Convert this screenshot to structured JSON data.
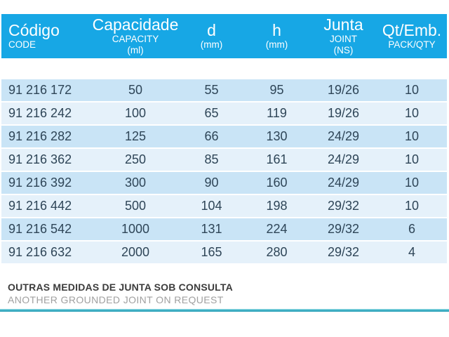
{
  "colors": {
    "header_bg": "#17a7e5",
    "header_text": "#ffffff",
    "row_odd": "#c9e4f6",
    "row_even": "#e5f1fa",
    "row_text": "#2e4557",
    "footer_bold": "#3b3b3b",
    "footer_gray": "#a0a0a0",
    "teal_rule": "#35abc1"
  },
  "table": {
    "columns": [
      {
        "id": "codigo",
        "title": "Código",
        "subtitles": [
          "CODE"
        ]
      },
      {
        "id": "capacidade",
        "title": "Capacidade",
        "subtitles": [
          "CAPACITY",
          "(ml)"
        ]
      },
      {
        "id": "d",
        "title": "d",
        "subtitles": [
          "(mm)"
        ]
      },
      {
        "id": "h",
        "title": "h",
        "subtitles": [
          "(mm)"
        ]
      },
      {
        "id": "junta",
        "title": "Junta",
        "subtitles": [
          "JOINT",
          "(NS)"
        ]
      },
      {
        "id": "qt_emb",
        "title": "Qt/Emb.",
        "subtitles": [
          "PACK/QTY"
        ]
      }
    ],
    "rows": [
      [
        "91 216 172",
        "50",
        "55",
        "95",
        "19/26",
        "10"
      ],
      [
        "91 216 242",
        "100",
        "65",
        "119",
        "19/26",
        "10"
      ],
      [
        "91 216 282",
        "125",
        "66",
        "130",
        "24/29",
        "10"
      ],
      [
        "91 216 362",
        "250",
        "85",
        "161",
        "24/29",
        "10"
      ],
      [
        "91 216 392",
        "300",
        "90",
        "160",
        "24/29",
        "10"
      ],
      [
        "91 216 442",
        "500",
        "104",
        "198",
        "29/32",
        "10"
      ],
      [
        "91 216 542",
        "1000",
        "131",
        "224",
        "29/32",
        "6"
      ],
      [
        "91 216 632",
        "2000",
        "165",
        "280",
        "29/32",
        "4"
      ]
    ]
  },
  "footer": {
    "note_pt": "OUTRAS MEDIDAS DE JUNTA SOB CONSULTA",
    "note_en": "ANOTHER GROUNDED JOINT ON REQUEST"
  },
  "chart_data": {
    "type": "table",
    "columns": [
      "Código / CODE",
      "Capacidade / CAPACITY (ml)",
      "d (mm)",
      "h (mm)",
      "Junta / JOINT (NS)",
      "Qt/Emb. / PACK/QTY"
    ],
    "rows": [
      [
        "91 216 172",
        50,
        55,
        95,
        "19/26",
        10
      ],
      [
        "91 216 242",
        100,
        65,
        119,
        "19/26",
        10
      ],
      [
        "91 216 282",
        125,
        66,
        130,
        "24/29",
        10
      ],
      [
        "91 216 362",
        250,
        85,
        161,
        "24/29",
        10
      ],
      [
        "91 216 392",
        300,
        90,
        160,
        "24/29",
        10
      ],
      [
        "91 216 442",
        500,
        104,
        198,
        "29/32",
        10
      ],
      [
        "91 216 542",
        1000,
        131,
        224,
        "29/32",
        6
      ],
      [
        "91 216 632",
        2000,
        165,
        280,
        "29/32",
        4
      ]
    ]
  }
}
